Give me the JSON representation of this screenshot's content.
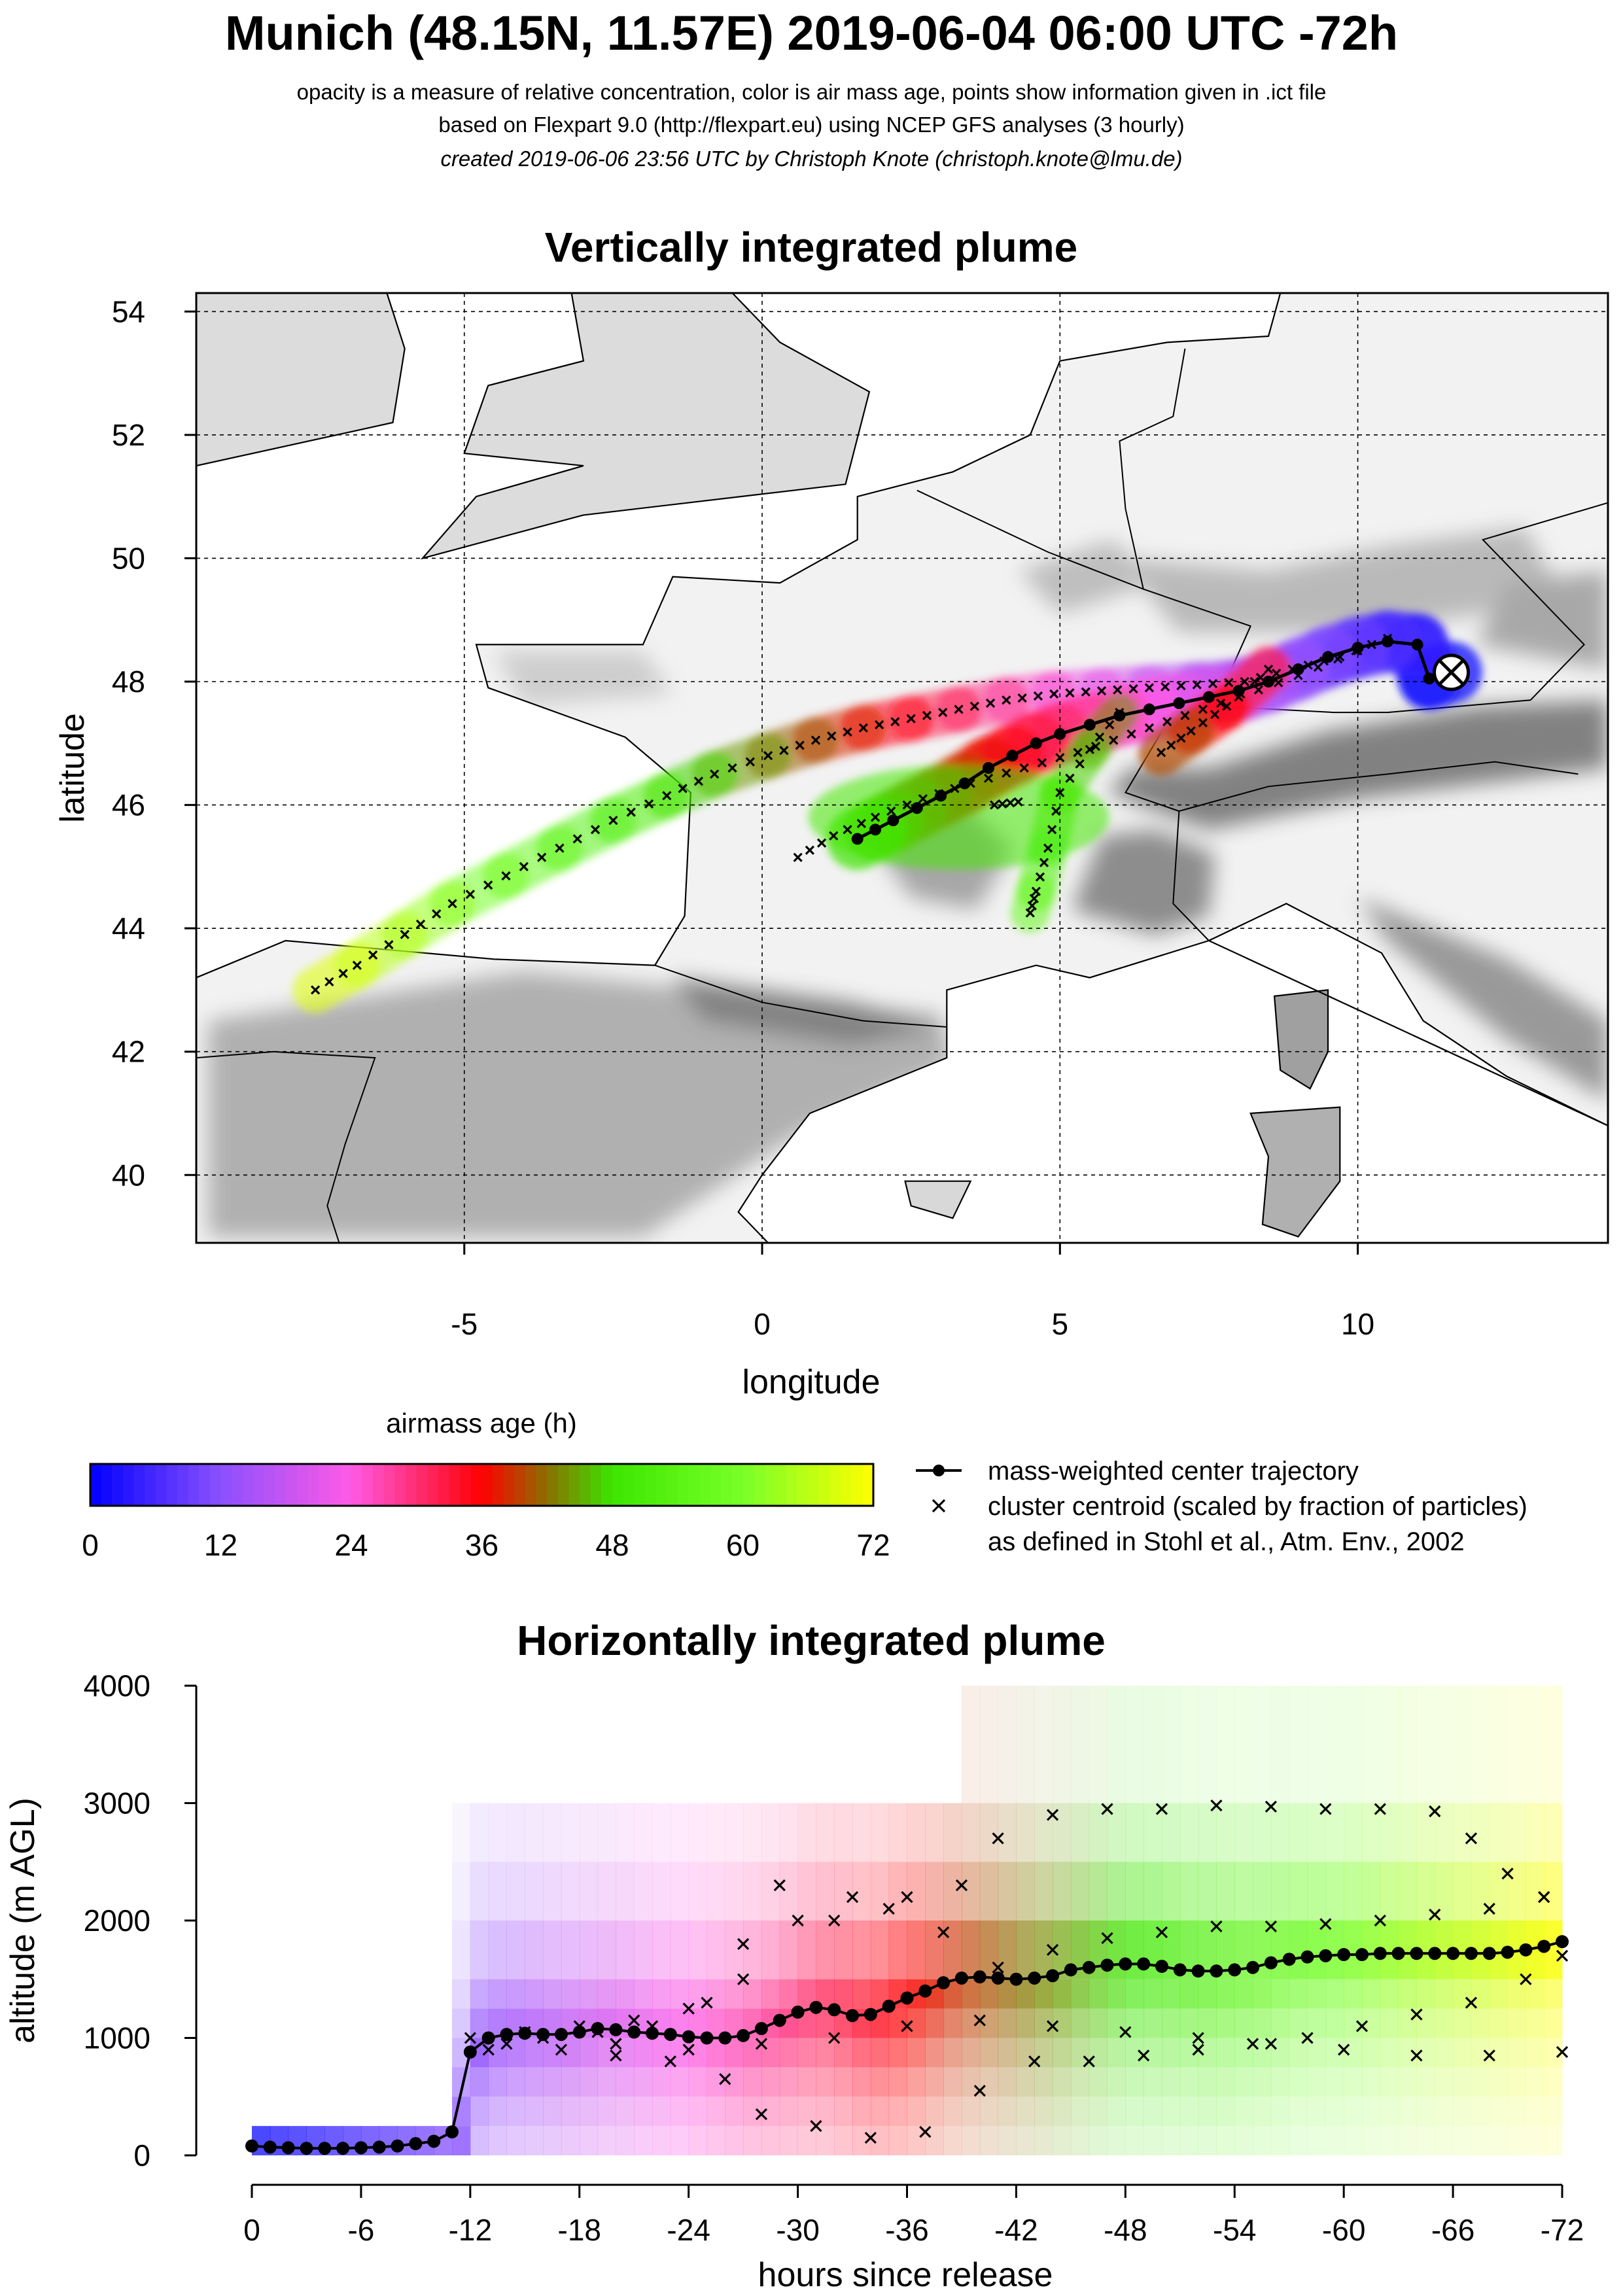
{
  "header": {
    "title": "Munich (48.15N, 11.57E) 2019-06-04 06:00 UTC -72h",
    "subtitle1": "opacity is a measure of relative concentration, color is air mass age, points show information given in .ict file",
    "subtitle2": "based on Flexpart 9.0 (http://flexpart.eu) using NCEP GFS analyses (3 hourly)",
    "subtitle3": "created 2019-06-06 23:56 UTC by Christoph Knote (christoph.knote@lmu.de)"
  },
  "colors": {
    "age_0": "#0000ff",
    "age_24": "#ff55ee",
    "age_36": "#ff0000",
    "age_48": "#44ff00",
    "age_72": "#ffff00",
    "terrain": "#888888",
    "coast": "#000000"
  },
  "chart_data": [
    {
      "type": "scatter",
      "title": "Vertically integrated plume",
      "xlabel": "longitude",
      "ylabel": "latitude",
      "xlim": [
        -9.5,
        14.2
      ],
      "ylim": [
        38.9,
        54.3
      ],
      "xticks": [
        -5,
        0,
        5,
        10
      ],
      "yticks": [
        40,
        42,
        44,
        46,
        48,
        50,
        52,
        54
      ],
      "grid": true,
      "release_point": {
        "lon": 11.57,
        "lat": 48.15
      },
      "series": [
        {
          "name": "mass-weighted center trajectory",
          "marker": "circle-line",
          "points": [
            [
              11.57,
              48.15
            ],
            [
              11.2,
              48.05
            ],
            [
              11.0,
              48.6
            ],
            [
              10.5,
              48.65
            ],
            [
              10.0,
              48.55
            ],
            [
              9.5,
              48.4
            ],
            [
              9.0,
              48.2
            ],
            [
              8.5,
              48.0
            ],
            [
              8.0,
              47.85
            ],
            [
              7.5,
              47.75
            ],
            [
              7.0,
              47.65
            ],
            [
              6.5,
              47.55
            ],
            [
              6.0,
              47.45
            ],
            [
              5.5,
              47.3
            ],
            [
              5.0,
              47.15
            ],
            [
              4.6,
              47.0
            ],
            [
              4.2,
              46.8
            ],
            [
              3.8,
              46.6
            ],
            [
              3.4,
              46.35
            ],
            [
              3.0,
              46.15
            ],
            [
              2.6,
              45.95
            ],
            [
              2.2,
              45.75
            ],
            [
              1.9,
              45.6
            ],
            [
              1.6,
              45.45
            ]
          ]
        },
        {
          "name": "cluster centroid (scaled by fraction of particles)",
          "marker": "cross",
          "tracks": [
            [
              [
                10.5,
                48.7
              ],
              [
                9.7,
                48.4
              ],
              [
                8.9,
                48.2
              ],
              [
                8.1,
                48.0
              ],
              [
                7.3,
                47.95
              ],
              [
                6.5,
                47.9
              ],
              [
                5.7,
                47.85
              ],
              [
                4.9,
                47.8
              ],
              [
                4.1,
                47.7
              ],
              [
                3.3,
                47.55
              ],
              [
                2.5,
                47.4
              ],
              [
                1.7,
                47.25
              ],
              [
                0.9,
                47.05
              ],
              [
                0.1,
                46.8
              ],
              [
                -0.8,
                46.5
              ],
              [
                -1.6,
                46.15
              ],
              [
                -2.5,
                45.75
              ],
              [
                -3.4,
                45.3
              ],
              [
                -4.3,
                44.85
              ],
              [
                -5.2,
                44.4
              ],
              [
                -6.0,
                43.9
              ],
              [
                -6.8,
                43.4
              ],
              [
                -7.5,
                43.0
              ]
            ],
            [
              [
                10.0,
                48.5
              ],
              [
                9.0,
                48.1
              ],
              [
                8.0,
                47.75
              ],
              [
                7.1,
                47.45
              ],
              [
                6.2,
                47.15
              ],
              [
                5.3,
                46.85
              ],
              [
                4.4,
                46.6
              ],
              [
                3.5,
                46.35
              ],
              [
                2.7,
                46.1
              ],
              [
                1.9,
                45.8
              ],
              [
                1.2,
                45.5
              ],
              [
                0.6,
                45.15
              ]
            ],
            [
              [
                8.5,
                48.2
              ],
              [
                7.8,
                47.6
              ],
              [
                7.2,
                47.2
              ],
              [
                6.7,
                46.85
              ]
            ],
            [
              [
                6.0,
                47.5
              ],
              [
                5.5,
                46.9
              ],
              [
                5.0,
                46.2
              ],
              [
                4.8,
                45.3
              ],
              [
                4.6,
                44.6
              ],
              [
                4.5,
                44.25
              ]
            ],
            [
              [
                4.3,
                46.05
              ],
              [
                3.9,
                46.0
              ]
            ]
          ]
        }
      ],
      "legend": {
        "title": "airmass age (h)",
        "ticks": [
          "0",
          "12",
          "24",
          "36",
          "48",
          "60",
          "72"
        ],
        "entries": [
          {
            "label": "mass-weighted center trajectory"
          },
          {
            "label": "cluster centroid (scaled by fraction of particles)"
          },
          {
            "label": "as defined in Stohl et al., Atm. Env., 2002"
          }
        ]
      }
    },
    {
      "type": "scatter",
      "title": "Horizontally integrated plume",
      "xlabel": "hours since release",
      "ylabel": "altitude (m AGL)",
      "xlim": [
        0,
        -72
      ],
      "ylim": [
        0,
        4000
      ],
      "xticks": [
        "0",
        "-6",
        "-12",
        "-18",
        "-24",
        "-30",
        "-36",
        "-42",
        "-48",
        "-54",
        "-60",
        "-66",
        "-72"
      ],
      "yticks": [
        "0",
        "1000",
        "2000",
        "3000",
        "4000"
      ],
      "series": [
        {
          "name": "mass-weighted center trajectory",
          "x": [
            0,
            -1,
            -2,
            -3,
            -4,
            -5,
            -6,
            -7,
            -8,
            -9,
            -10,
            -11,
            -12,
            -13,
            -14,
            -15,
            -16,
            -17,
            -18,
            -19,
            -20,
            -21,
            -22,
            -23,
            -24,
            -25,
            -26,
            -27,
            -28,
            -29,
            -30,
            -31,
            -32,
            -33,
            -34,
            -35,
            -36,
            -37,
            -38,
            -39,
            -40,
            -41,
            -42,
            -43,
            -44,
            -45,
            -46,
            -47,
            -48,
            -49,
            -50,
            -51,
            -52,
            -53,
            -54,
            -55,
            -56,
            -57,
            -58,
            -59,
            -60,
            -61,
            -62,
            -63,
            -64,
            -65,
            -66,
            -67,
            -68,
            -69,
            -70,
            -71,
            -72
          ],
          "y": [
            80,
            70,
            65,
            60,
            60,
            60,
            65,
            70,
            80,
            100,
            120,
            200,
            880,
            1000,
            1030,
            1040,
            1030,
            1030,
            1050,
            1080,
            1070,
            1050,
            1040,
            1030,
            1010,
            1000,
            1000,
            1020,
            1080,
            1150,
            1220,
            1260,
            1240,
            1190,
            1200,
            1270,
            1340,
            1400,
            1470,
            1510,
            1520,
            1510,
            1500,
            1510,
            1530,
            1580,
            1600,
            1620,
            1630,
            1630,
            1610,
            1580,
            1570,
            1570,
            1580,
            1600,
            1640,
            1670,
            1690,
            1700,
            1710,
            1710,
            1720,
            1720,
            1720,
            1720,
            1720,
            1720,
            1720,
            1730,
            1750,
            1780,
            1820
          ]
        },
        {
          "name": "cluster centroid (scaled by fraction of particles)",
          "tracks": [
            {
              "x": [
                -12,
                -15,
                -18,
                -21,
                -24,
                -27,
                -30,
                -33,
                -36,
                -39,
                -41,
                -44,
                -47,
                -50,
                -53,
                -56,
                -59,
                -62,
                -65,
                -67,
                -69,
                -71
              ],
              "y": [
                1000,
                1050,
                1100,
                1150,
                1250,
                1500,
                2000,
                2200,
                2200,
                2300,
                2700,
                2900,
                2950,
                2950,
                2980,
                2970,
                2950,
                2950,
                2930,
                2700,
                2400,
                2200
              ]
            },
            {
              "x": [
                -13,
                -16,
                -19,
                -22,
                -25,
                -27,
                -29,
                -32,
                -35,
                -38,
                -41,
                -44,
                -47,
                -50,
                -53,
                -56,
                -59,
                -62,
                -65,
                -68,
                -71
              ],
              "y": [
                900,
                1000,
                1050,
                1100,
                1300,
                1800,
                2300,
                2000,
                2100,
                1900,
                1600,
                1750,
                1850,
                1900,
                1950,
                1950,
                1970,
                2000,
                2050,
                2100,
                2200
              ]
            },
            {
              "x": [
                -14,
                -17,
                -20,
                -23,
                -26,
                -28,
                -31,
                -34,
                -37,
                -40,
                -43,
                -46,
                -49,
                -52,
                -55,
                -58,
                -61,
                -64,
                -67,
                -70,
                -72
              ],
              "y": [
                950,
                900,
                850,
                800,
                650,
                350,
                250,
                150,
                200,
                550,
                800,
                800,
                850,
                900,
                950,
                1000,
                1100,
                1200,
                1300,
                1500,
                1700
              ]
            },
            {
              "x": [
                -20,
                -24,
                -28,
                -32,
                -36,
                -40,
                -44,
                -48,
                -52,
                -56,
                -60,
                -64,
                -68,
                -72
              ],
              "y": [
                950,
                900,
                950,
                1000,
                1100,
                1150,
                1100,
                1050,
                1000,
                950,
                900,
                850,
                850,
                880
              ]
            }
          ]
        }
      ]
    }
  ]
}
